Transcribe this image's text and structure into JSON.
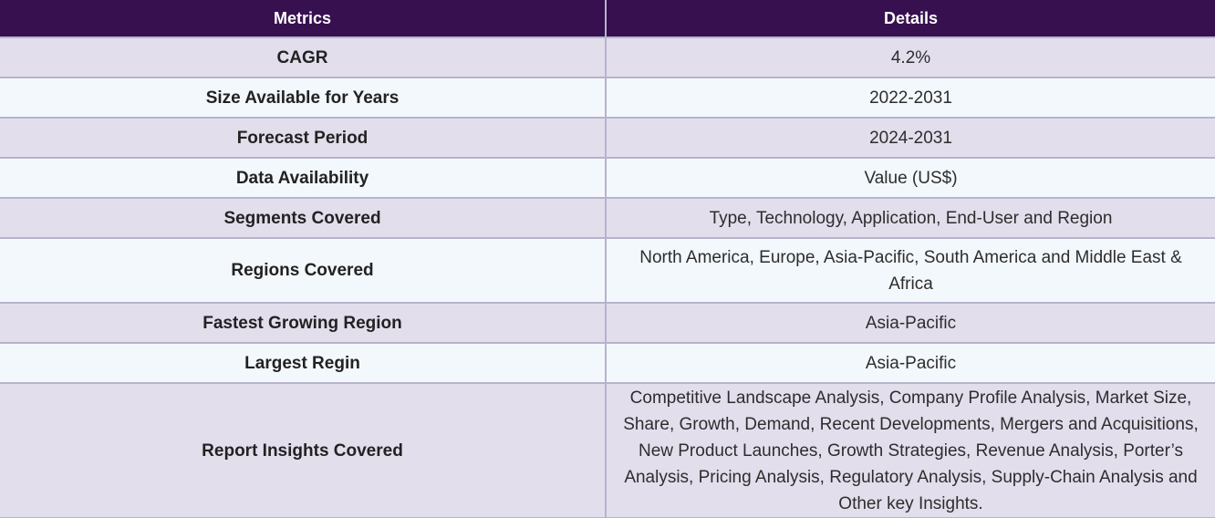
{
  "table": {
    "headers": [
      "Metrics",
      "Details"
    ],
    "rows": [
      {
        "metric": "CAGR",
        "detail": "4.2%"
      },
      {
        "metric": "Size Available for Years",
        "detail": "2022-2031"
      },
      {
        "metric": "Forecast Period",
        "detail": "2024-2031"
      },
      {
        "metric": "Data Availability",
        "detail": "Value (US$)"
      },
      {
        "metric": "Segments Covered",
        "detail": "Type, Technology, Application, End-User and Region"
      },
      {
        "metric": "Regions Covered",
        "detail": "North America, Europe, Asia-Pacific, South America and Middle East & Africa"
      },
      {
        "metric": "Fastest Growing Region",
        "detail": "Asia-Pacific"
      },
      {
        "metric": "Largest Regin",
        "detail": "Asia-Pacific"
      },
      {
        "metric": "Report Insights Covered",
        "detail": "Competitive Landscape Analysis, Company Profile Analysis, Market Size, Share, Growth, Demand, Recent Developments, Mergers and Acquisitions, New Product Launches, Growth Strategies, Revenue Analysis, Porter’s Analysis, Pricing Analysis, Regulatory Analysis, Supply-Chain Analysis and Other key Insights."
      }
    ]
  },
  "colors": {
    "header_bg": "#37104f",
    "header_text": "#ffffff",
    "row_odd_bg": "#e2deec",
    "row_even_bg": "#f3f8fc",
    "border": "#b7b3cc"
  }
}
